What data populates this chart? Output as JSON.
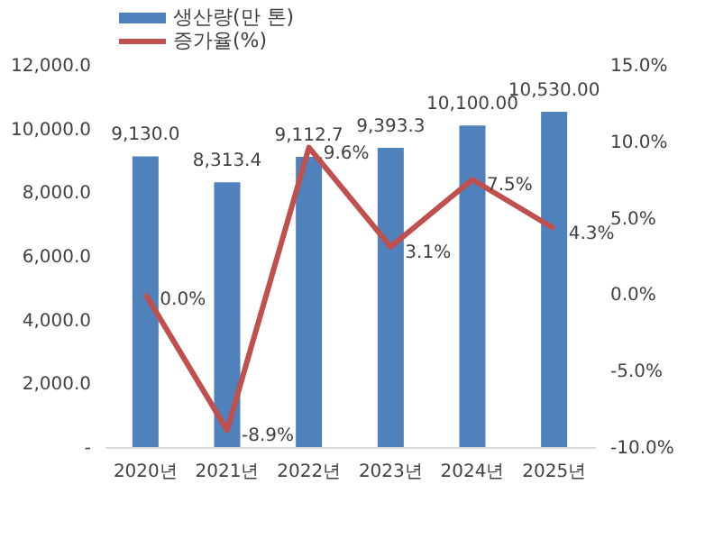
{
  "chart_data": {
    "type": "bar",
    "categories": [
      "2020년",
      "2021년",
      "2022년",
      "2023년",
      "2024년",
      "2025년"
    ],
    "series": [
      {
        "name": "생산량(만 톤)",
        "color": "#4f81bd",
        "values": [
          9130.0,
          8313.4,
          9112.7,
          9393.3,
          10100.0,
          10530.0
        ],
        "value_labels": [
          "9,130.0",
          "8,313.4",
          "9,112.7",
          "9,393.3",
          "10,100.00",
          "10,530.00"
        ]
      },
      {
        "name": "증가율(%)",
        "type": "line",
        "axis": "y2",
        "color": "#c0504d",
        "values": [
          0.0,
          -8.9,
          9.6,
          3.1,
          7.5,
          4.3
        ],
        "value_labels": [
          "0.0%",
          "-8.9%",
          "9.6%",
          "3.1%",
          "7.5%",
          "4.3%"
        ]
      }
    ],
    "ylim": [
      0,
      12000
    ],
    "yticks": [
      {
        "value": 0,
        "label": "-"
      },
      {
        "value": 2000,
        "label": "2,000.0"
      },
      {
        "value": 4000,
        "label": "4,000.0"
      },
      {
        "value": 6000,
        "label": "6,000.0"
      },
      {
        "value": 8000,
        "label": "8,000.0"
      },
      {
        "value": 10000,
        "label": "10,000.0"
      },
      {
        "value": 12000,
        "label": "12,000.0"
      }
    ],
    "y2lim": [
      -10,
      15
    ],
    "y2ticks": [
      {
        "value": -10,
        "label": "-10.0%"
      },
      {
        "value": -5,
        "label": "-5.0%"
      },
      {
        "value": 0,
        "label": "0.0%"
      },
      {
        "value": 5,
        "label": "5.0%"
      },
      {
        "value": 10,
        "label": "10.0%"
      },
      {
        "value": 15,
        "label": "15.0%"
      }
    ],
    "grid": false,
    "legend": "top left",
    "marker": "none",
    "line_style": "solid"
  }
}
